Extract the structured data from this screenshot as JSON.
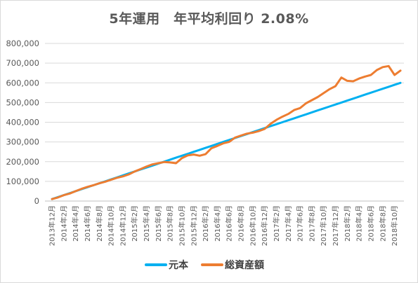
{
  "chart_data": {
    "type": "line",
    "title": "5年運用　年平均利回り 2.08%",
    "xlabel": "",
    "ylabel": "",
    "ylim": [
      0,
      800000
    ],
    "yticks": [
      "0",
      "100,000",
      "200,000",
      "300,000",
      "400,000",
      "500,000",
      "600,000",
      "700,000",
      "800,000"
    ],
    "grid": true,
    "legend_position": "bottom",
    "x": [
      "2013年12月",
      "2014年1月",
      "2014年2月",
      "2014年3月",
      "2014年4月",
      "2014年5月",
      "2014年6月",
      "2014年7月",
      "2014年8月",
      "2014年9月",
      "2014年10月",
      "2014年11月",
      "2014年12月",
      "2015年1月",
      "2015年2月",
      "2015年3月",
      "2015年4月",
      "2015年5月",
      "2015年6月",
      "2015年7月",
      "2015年8月",
      "2015年9月",
      "2015年10月",
      "2015年11月",
      "2015年12月",
      "2016年1月",
      "2016年2月",
      "2016年3月",
      "2016年4月",
      "2016年5月",
      "2016年6月",
      "2016年7月",
      "2016年8月",
      "2016年9月",
      "2016年10月",
      "2016年11月",
      "2016年12月",
      "2017年1月",
      "2017年2月",
      "2017年3月",
      "2017年4月",
      "2017年5月",
      "2017年6月",
      "2017年7月",
      "2017年8月",
      "2017年9月",
      "2017年10月",
      "2017年11月",
      "2017年12月",
      "2018年1月",
      "2018年2月",
      "2018年3月",
      "2018年4月",
      "2018年5月",
      "2018年6月",
      "2018年7月",
      "2018年8月",
      "2018年9月",
      "2018年10月",
      "2018年11月"
    ],
    "xtick_labels": [
      "2013年12月",
      "2014年2月",
      "2014年4月",
      "2014年6月",
      "2014年8月",
      "2014年10月",
      "2014年12月",
      "2015年2月",
      "2015年4月",
      "2015年6月",
      "2015年8月",
      "2015年10月",
      "2015年12月",
      "2016年2月",
      "2016年4月",
      "2016年6月",
      "2016年8月",
      "2016年10月",
      "2016年12月",
      "2017年2月",
      "2017年4月",
      "2017年6月",
      "2017年8月",
      "2017年10月",
      "2017年12月",
      "2018年2月",
      "2018年4月",
      "2018年6月",
      "2018年8月",
      "2018年10月"
    ],
    "series": [
      {
        "name": "元本",
        "color": "#00b0f0",
        "values": [
          10000,
          20000,
          30000,
          40000,
          50000,
          60000,
          70000,
          80000,
          90000,
          100000,
          110000,
          120000,
          130000,
          140000,
          150000,
          160000,
          170000,
          180000,
          190000,
          200000,
          210000,
          220000,
          230000,
          240000,
          250000,
          260000,
          270000,
          280000,
          290000,
          300000,
          310000,
          320000,
          330000,
          340000,
          350000,
          360000,
          370000,
          380000,
          390000,
          400000,
          410000,
          420000,
          430000,
          440000,
          450000,
          460000,
          470000,
          480000,
          490000,
          500000,
          510000,
          520000,
          530000,
          540000,
          550000,
          560000,
          570000,
          580000,
          590000,
          600000
        ]
      },
      {
        "name": "総資産額",
        "color": "#ed7d31",
        "values": [
          10000,
          18000,
          30000,
          38000,
          50000,
          62000,
          72000,
          80000,
          90000,
          98000,
          108000,
          118000,
          125000,
          135000,
          150000,
          162000,
          175000,
          186000,
          192000,
          198000,
          196000,
          192000,
          218000,
          232000,
          236000,
          230000,
          238000,
          268000,
          280000,
          293000,
          300000,
          322000,
          332000,
          342000,
          347000,
          355000,
          366000,
          392000,
          412000,
          428000,
          442000,
          462000,
          472000,
          496000,
          512000,
          528000,
          548000,
          568000,
          583000,
          627000,
          610000,
          608000,
          622000,
          632000,
          640000,
          665000,
          680000,
          685000,
          640000,
          662000
        ]
      }
    ]
  }
}
